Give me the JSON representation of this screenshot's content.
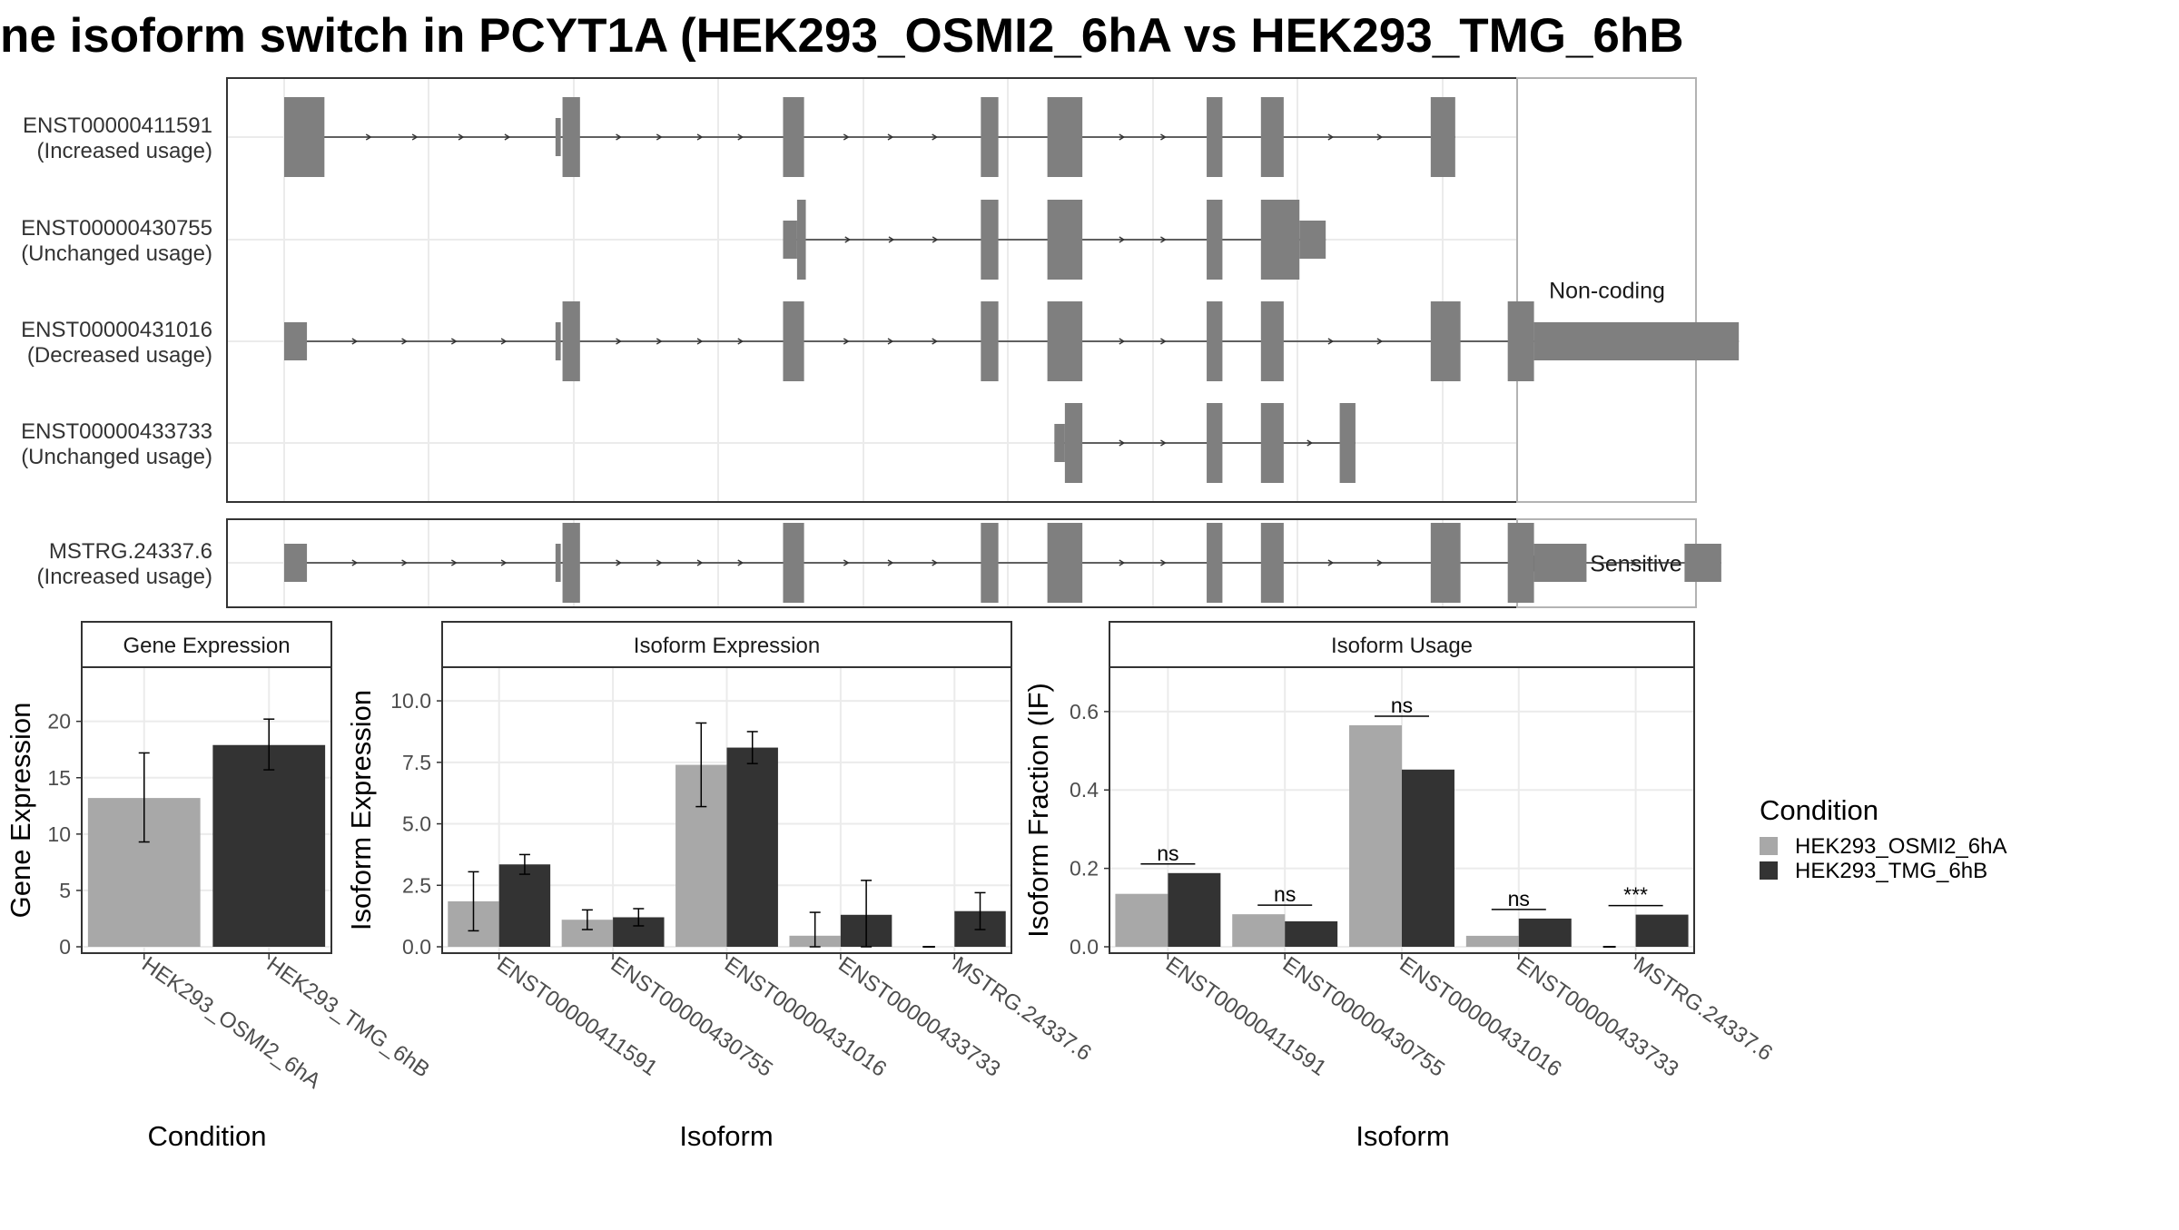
{
  "title": "ne isoform switch in PCYT1A (HEK293_OSMI2_6hA vs HEK293_TMG_6hB",
  "colors": {
    "exon": "#7f7f7f",
    "condA": "#a8a8a8",
    "condB": "#333333",
    "grid": "#ebebeb",
    "border": "#333333",
    "stripBorder": "#b3b3b3"
  },
  "structure": {
    "groups": [
      {
        "strip": "Non-coding",
        "transcripts": [
          {
            "id": "ENST00000411591",
            "usage": "(Increased usage)",
            "exons": [
              [
                0,
                23,
                "b"
              ],
              [
                155,
                158,
                "s"
              ],
              [
                159,
                169,
                "b"
              ],
              [
                285,
                297,
                "b"
              ],
              [
                398,
                408,
                "b"
              ],
              [
                436,
                456,
                "b"
              ],
              [
                527,
                536,
                "b"
              ],
              [
                558,
                571,
                "b"
              ],
              [
                655,
                669,
                "b"
              ]
            ]
          },
          {
            "id": "ENST00000430755",
            "usage": "(Unchanged usage)",
            "exons": [
              [
                285,
                293,
                "s"
              ],
              [
                293,
                298,
                "b"
              ],
              [
                398,
                408,
                "b"
              ],
              [
                436,
                456,
                "b"
              ],
              [
                527,
                536,
                "b"
              ],
              [
                558,
                580,
                "b"
              ],
              [
                580,
                595,
                "s"
              ]
            ]
          },
          {
            "id": "ENST00000431016",
            "usage": "(Decreased usage)",
            "exons": [
              [
                0,
                13,
                "s"
              ],
              [
                155,
                158,
                "s"
              ],
              [
                159,
                169,
                "b"
              ],
              [
                285,
                297,
                "b"
              ],
              [
                398,
                408,
                "b"
              ],
              [
                436,
                456,
                "b"
              ],
              [
                527,
                536,
                "b"
              ],
              [
                558,
                571,
                "b"
              ],
              [
                655,
                672,
                "b"
              ],
              [
                699,
                714,
                "b"
              ],
              [
                714,
                831,
                "s"
              ]
            ]
          },
          {
            "id": "ENST00000433733",
            "usage": "(Unchanged usage)",
            "exons": [
              [
                440,
                446,
                "s"
              ],
              [
                446,
                456,
                "b"
              ],
              [
                527,
                536,
                "b"
              ],
              [
                558,
                571,
                "b"
              ],
              [
                603,
                612,
                "b"
              ]
            ]
          }
        ]
      },
      {
        "strip": "NMD Sensitive",
        "transcripts": [
          {
            "id": "MSTRG.24337.6",
            "usage": "(Increased usage)",
            "exons": [
              [
                0,
                13,
                "s"
              ],
              [
                155,
                158,
                "s"
              ],
              [
                159,
                169,
                "b"
              ],
              [
                285,
                297,
                "b"
              ],
              [
                398,
                408,
                "b"
              ],
              [
                436,
                456,
                "b"
              ],
              [
                527,
                536,
                "b"
              ],
              [
                558,
                571,
                "b"
              ],
              [
                655,
                672,
                "b"
              ],
              [
                699,
                714,
                "b"
              ],
              [
                714,
                744,
                "s"
              ],
              [
                800,
                821,
                "s"
              ]
            ]
          }
        ]
      }
    ]
  },
  "legend": {
    "title": "Condition",
    "items": [
      "HEK293_OSMI2_6hA",
      "HEK293_TMG_6hB"
    ]
  },
  "chart_data": [
    {
      "type": "bar",
      "title": "Gene Expression",
      "xlabel": "Condition",
      "ylabel": "Gene Expression",
      "ylim": [
        0,
        24
      ],
      "yticks": [
        0,
        5,
        10,
        15,
        20
      ],
      "categories": [
        "HEK293_OSMI2_6hA",
        "HEK293_TMG_6hB"
      ],
      "series": [
        {
          "name": "HEK293_OSMI2_6hA",
          "values": [
            13.2,
            null
          ],
          "err_low": [
            9.3,
            null
          ],
          "err_high": [
            17.2,
            null
          ]
        },
        {
          "name": "HEK293_TMG_6hB",
          "values": [
            null,
            17.9
          ],
          "err_low": [
            null,
            15.7
          ],
          "err_high": [
            null,
            20.2
          ]
        }
      ]
    },
    {
      "type": "bar",
      "title": "Isoform Expression",
      "xlabel": "Isoform",
      "ylabel": "Isoform Expression",
      "ylim": [
        0,
        11
      ],
      "yticks": [
        "0.0",
        "2.5",
        "5.0",
        "7.5",
        "10.0"
      ],
      "categories": [
        "ENST00000411591",
        "ENST00000430755",
        "ENST00000431016",
        "ENST00000433733",
        "MSTRG.24337.6"
      ],
      "series": [
        {
          "name": "HEK293_OSMI2_6hA",
          "values": [
            1.85,
            1.1,
            7.4,
            0.45,
            0.0
          ],
          "err_low": [
            0.65,
            0.7,
            5.7,
            0.0,
            0.0
          ],
          "err_high": [
            3.05,
            1.5,
            9.1,
            1.4,
            0.0
          ]
        },
        {
          "name": "HEK293_TMG_6hB",
          "values": [
            3.35,
            1.2,
            8.1,
            1.3,
            1.45
          ],
          "err_low": [
            2.95,
            0.85,
            7.45,
            0.0,
            0.7
          ],
          "err_high": [
            3.75,
            1.55,
            8.75,
            2.7,
            2.2
          ]
        }
      ]
    },
    {
      "type": "bar",
      "title": "Isoform Usage",
      "xlabel": "Isoform",
      "ylabel": "Isoform Fraction (IF)",
      "ylim": [
        0,
        0.69
      ],
      "yticks": [
        "0.0",
        "0.2",
        "0.4",
        "0.6"
      ],
      "categories": [
        "ENST00000411591",
        "ENST00000430755",
        "ENST00000431016",
        "ENST00000433733",
        "MSTRG.24337.6"
      ],
      "series": [
        {
          "name": "HEK293_OSMI2_6hA",
          "values": [
            0.135,
            0.083,
            0.565,
            0.028,
            0.0
          ]
        },
        {
          "name": "HEK293_TMG_6hB",
          "values": [
            0.188,
            0.065,
            0.452,
            0.072,
            0.082
          ]
        }
      ],
      "significance": [
        "ns",
        "ns",
        "ns",
        "ns",
        "***"
      ]
    }
  ]
}
